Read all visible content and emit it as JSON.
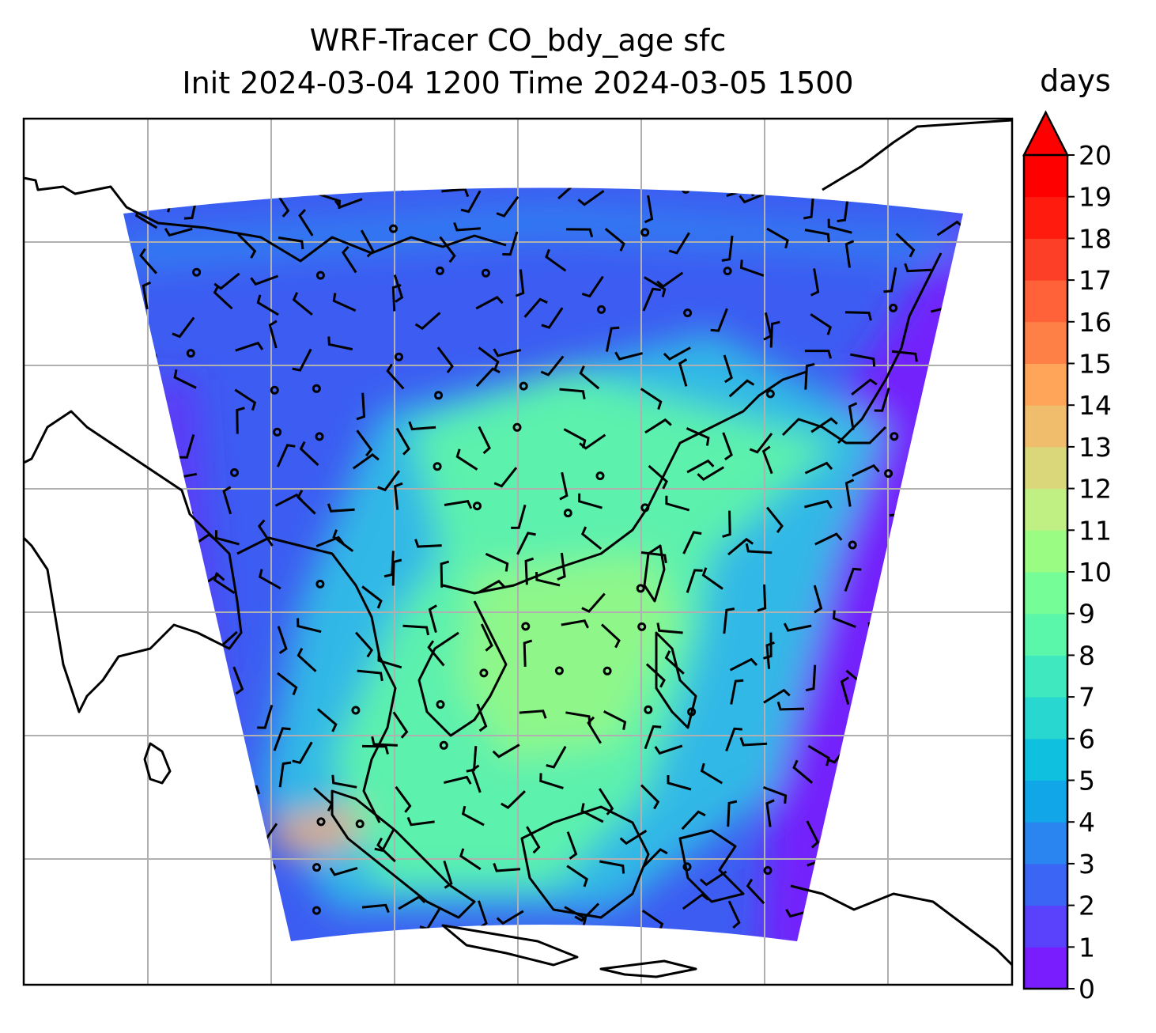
{
  "title": {
    "line1": "WRF-Tracer CO_bdy_age sfc",
    "line2": "Init 2024-03-04 1200 Time 2024-03-05 1500"
  },
  "colorbar": {
    "units": "days",
    "ticks": [
      "0",
      "1",
      "2",
      "3",
      "4",
      "5",
      "6",
      "7",
      "8",
      "9",
      "10",
      "11",
      "12",
      "13",
      "14",
      "15",
      "16",
      "17",
      "18",
      "19",
      "20"
    ],
    "colors": [
      "#7a1dfe",
      "#5a41fb",
      "#3b66f5",
      "#2b85f0",
      "#11a6e8",
      "#0fc1de",
      "#27d7d0",
      "#3fe8bf",
      "#5af7ab",
      "#75fe98",
      "#9afc83",
      "#c0f083",
      "#d9d77a",
      "#f0bd6c",
      "#fea55a",
      "#ff8046",
      "#ff6238",
      "#fe3f27",
      "#ff1c0f",
      "#ff0000"
    ],
    "over_color": "#ff0000"
  },
  "map": {
    "field_colors": {
      "background": "#3d5df2",
      "edge": "#7322fb",
      "mid": "#30b8e6",
      "plume": "#5cf1ad",
      "core": "#8ff78a",
      "hot": "#e9a86a"
    }
  }
}
